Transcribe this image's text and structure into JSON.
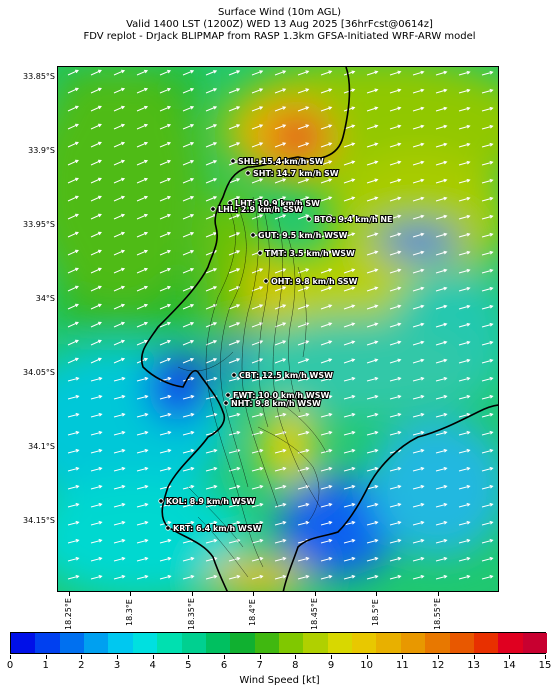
{
  "title": {
    "line1": "Surface Wind (10m AGL)",
    "line2": "Valid 1400 LST (1200Z) WED 13 Aug 2025 [36hrFcst@0614z]",
    "line3": "FDV replot - DrJack BLIPMAP from RASP 1.3km GFSA-Initiated WRF-ARW model"
  },
  "lat_ticks": [
    "33.85°S",
    "33.9°S",
    "33.95°S",
    "34°S",
    "34.05°S",
    "34.1°S",
    "34.15°S"
  ],
  "lon_ticks": [
    "18.25°E",
    "18.3°E",
    "18.35°E",
    "18.4°E",
    "18.45°E",
    "18.5°E",
    "18.55°E"
  ],
  "stations": [
    {
      "text": "SHL: 15.4 km/h SW"
    },
    {
      "text": "SHT: 14.7 km/h SW"
    },
    {
      "text": "LHT: 10.9 km/h SW"
    },
    {
      "text": "LHL: 2.9 km/h SSW"
    },
    {
      "text": "BTO: 9.4 km/h NE"
    },
    {
      "text": "GUT: 9.5 km/h WSW"
    },
    {
      "text": "TMT: 3.5 km/h WSW"
    },
    {
      "text": "OHT: 9.8 km/h SSW"
    },
    {
      "text": "CBT: 12.5 km/h WSW"
    },
    {
      "text": "FWT: 10.0 km/h WSW"
    },
    {
      "text": "NHT: 9.8 km/h WSW"
    },
    {
      "text": "KOL: 8.9 km/h WSW"
    },
    {
      "text": "KRT: 6.4 km/h WSW"
    }
  ],
  "colorbar": {
    "ticks": [
      "0",
      "1",
      "2",
      "3",
      "4",
      "5",
      "6",
      "7",
      "8",
      "9",
      "10",
      "11",
      "12",
      "13",
      "14",
      "15"
    ],
    "label": "Wind Speed [kt]",
    "colors": [
      "#0010e8",
      "#0040f0",
      "#0070f0",
      "#00a0f0",
      "#00c8f0",
      "#00e0e0",
      "#00e0b0",
      "#00d090",
      "#00c060",
      "#10b030",
      "#40b810",
      "#80c800",
      "#b0d000",
      "#d8d800",
      "#e8c800",
      "#e8b000",
      "#e89800",
      "#e87800",
      "#e85800",
      "#e83000",
      "#e00020",
      "#c80030"
    ]
  }
}
